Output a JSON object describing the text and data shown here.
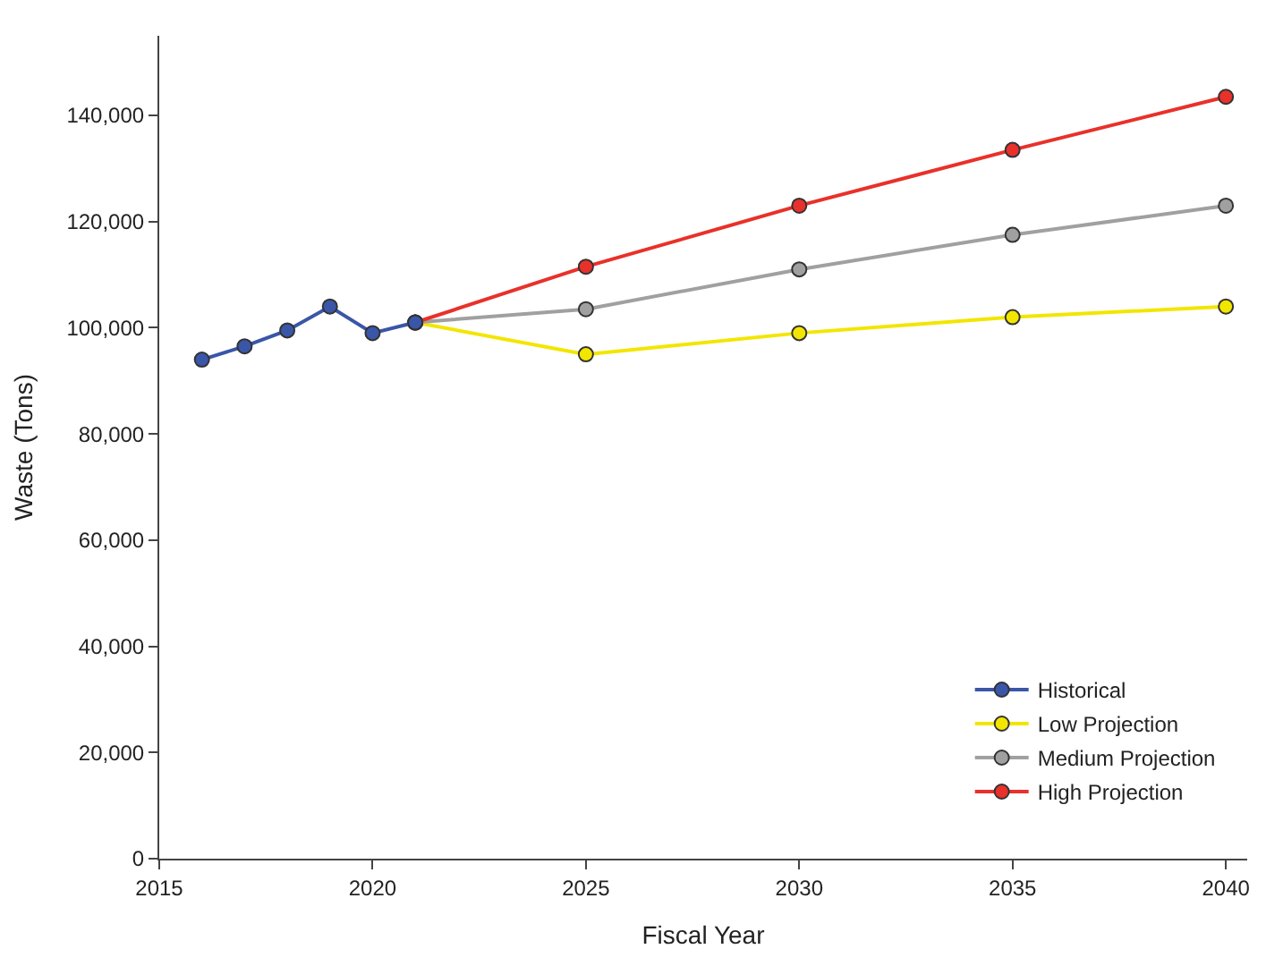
{
  "chart_data": {
    "type": "line",
    "xlabel": "Fiscal Year",
    "ylabel": "Waste (Tons)",
    "xlim": [
      2015,
      2040.5
    ],
    "xticks": [
      2015,
      2020,
      2025,
      2030,
      2035,
      2040
    ],
    "ylim": [
      0,
      155000
    ],
    "yticks": [
      {
        "value": 0,
        "label": "0"
      },
      {
        "value": 20000,
        "label": "20,000"
      },
      {
        "value": 40000,
        "label": "40,000"
      },
      {
        "value": 60000,
        "label": "60,000"
      },
      {
        "value": 80000,
        "label": "80,000"
      },
      {
        "value": 100000,
        "label": "100,000"
      },
      {
        "value": 120000,
        "label": "120,000"
      },
      {
        "value": 140000,
        "label": "140,000"
      }
    ],
    "legend": "bottom right",
    "marker": "circle",
    "line_style": "solid",
    "series": [
      {
        "name": "Historical",
        "color": "#3a56a8",
        "x": [
          2016,
          2017,
          2018,
          2019,
          2020,
          2021
        ],
        "values": [
          94000,
          96500,
          99500,
          104000,
          99000,
          101000
        ]
      },
      {
        "name": "Low Projection",
        "color": "#f2e600",
        "x": [
          2021,
          2025,
          2030,
          2035,
          2040
        ],
        "values": [
          101000,
          95000,
          99000,
          102000,
          104000
        ]
      },
      {
        "name": "Medium Projection",
        "color": "#a0a0a0",
        "x": [
          2021,
          2025,
          2030,
          2035,
          2040
        ],
        "values": [
          101000,
          103500,
          111000,
          117500,
          123000
        ]
      },
      {
        "name": "High Projection",
        "color": "#e8312a",
        "x": [
          2021,
          2025,
          2030,
          2035,
          2040
        ],
        "values": [
          101000,
          111500,
          123000,
          133500,
          143500
        ]
      }
    ]
  }
}
